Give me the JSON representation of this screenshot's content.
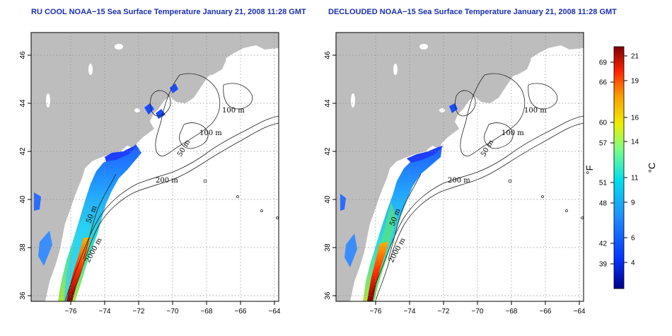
{
  "panels": [
    {
      "title": "RU COOL NOAA−15 Sea Surface Temperature January 21, 2008 11:28 GMT",
      "xticks": [
        "−76",
        "−74",
        "−72",
        "−70",
        "−68",
        "−66",
        "−64"
      ],
      "yticks": [
        "36",
        "38",
        "40",
        "42",
        "44",
        "46"
      ],
      "contour_labels": [
        "100 m",
        "100 m",
        "50 m",
        "200 m",
        "50 m",
        "2000 m"
      ]
    },
    {
      "title": "DECLOUDED NOAA−15 Sea Surface Temperature January 21, 2008 11:28 GMT",
      "xticks": [
        "−76",
        "−74",
        "−72",
        "−70",
        "−68",
        "−66",
        "−64"
      ],
      "yticks": [
        "36",
        "38",
        "40",
        "42",
        "44",
        "46"
      ],
      "contour_labels": [
        "100 m",
        "100 m",
        "50 m",
        "200 m",
        "50 m",
        "2000 m"
      ]
    }
  ],
  "colorbar": {
    "fahrenheit_ticks": [
      "69",
      "66",
      "60",
      "57",
      "51",
      "48",
      "42",
      "39"
    ],
    "celsius_ticks": [
      "21",
      "19",
      "16",
      "14",
      "11",
      "9",
      "6",
      "4"
    ],
    "fahrenheit_unit": "°F",
    "celsius_unit": "°C"
  },
  "colors": {
    "land": "#bdbdbd",
    "ocean": "#ffffff",
    "title": "#1a2fb0"
  }
}
